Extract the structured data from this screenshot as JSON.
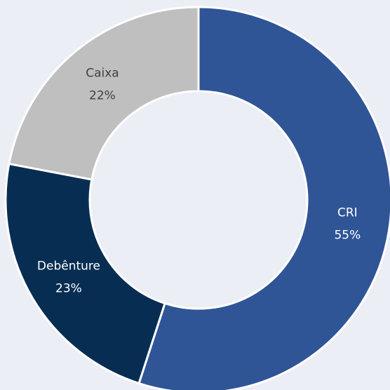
{
  "chart_data": {
    "type": "donut",
    "categories": [
      "CRI",
      "Debênture",
      "Caixa"
    ],
    "values": [
      55,
      23,
      22
    ],
    "value_labels": [
      "55%",
      "23%",
      "22%"
    ],
    "colors": [
      "#2f5597",
      "#072e52",
      "#bfbfbf"
    ],
    "label_colors": [
      "#ffffff",
      "#ffffff",
      "#404040"
    ]
  }
}
